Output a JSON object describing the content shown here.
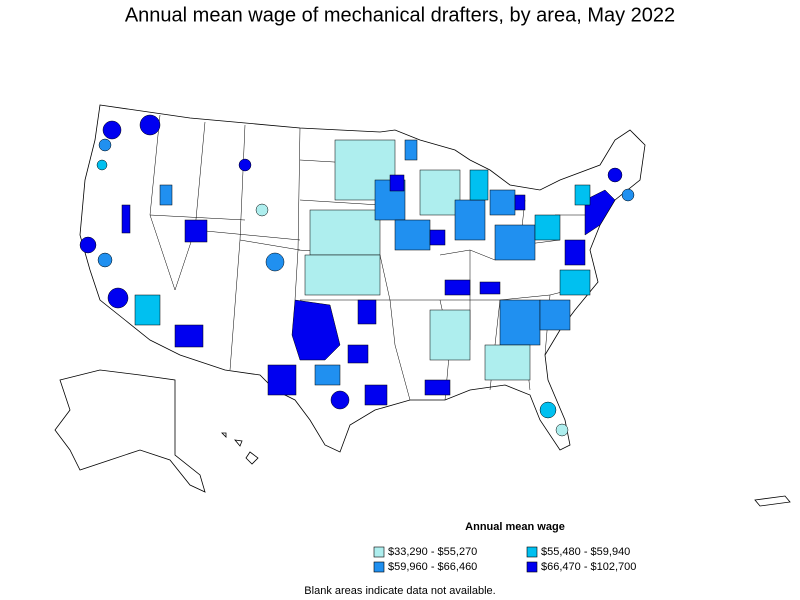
{
  "title": "Annual mean wage of mechanical drafters, by area, May 2022",
  "legend": {
    "title": "Annual mean wage",
    "items": [
      {
        "label": "$33,290 - $55,270",
        "color": "#aeeeee"
      },
      {
        "label": "$55,480 - $59,940",
        "color": "#00c0f0"
      },
      {
        "label": "$59,960 - $66,460",
        "color": "#2090f0"
      },
      {
        "label": "$66,470 - $102,700",
        "color": "#0000f0"
      }
    ]
  },
  "note": "Blank areas indicate data not available."
}
